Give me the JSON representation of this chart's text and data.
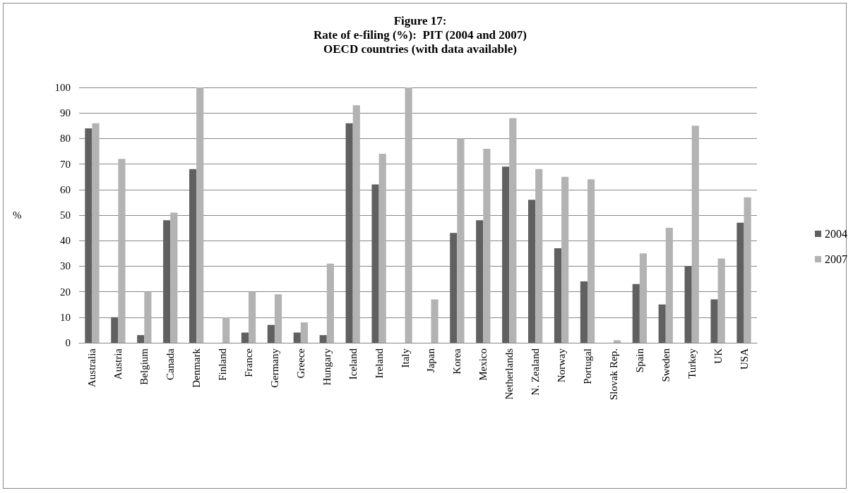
{
  "chart_data": {
    "type": "bar",
    "title": "Figure 17:\nRate of e-filing (%):  PIT (2004 and 2007)\nOECD countries (with data available)",
    "ylabel": "%",
    "categories": [
      "Australia",
      "Austria",
      "Belgium",
      "Canada",
      "Denmark",
      "Finland",
      "France",
      "Germany",
      "Greece",
      "Hungary",
      "Iceland",
      "Ireland",
      "Italy",
      "Japan",
      "Korea",
      "Mexico",
      "Netherlands",
      "N. Zealand",
      "Norway",
      "Portugal",
      "Slovak Rep.",
      "Spain",
      "Sweden",
      "Turkey",
      "UK",
      "USA"
    ],
    "series": [
      {
        "name": "2004",
        "color": "#606060",
        "values": [
          84,
          10,
          3,
          48,
          68,
          null,
          4,
          7,
          4,
          3,
          86,
          62,
          null,
          null,
          43,
          48,
          69,
          56,
          37,
          24,
          null,
          23,
          15,
          30,
          17,
          47
        ]
      },
      {
        "name": "2007",
        "color": "#b3b3b3",
        "values": [
          86,
          72,
          20,
          51,
          100,
          10,
          20,
          19,
          8,
          31,
          93,
          74,
          100,
          17,
          80,
          76,
          88,
          68,
          65,
          64,
          1,
          35,
          45,
          85,
          33,
          57
        ]
      }
    ],
    "ylim": [
      0,
      100
    ],
    "yticks": [
      0,
      10,
      20,
      30,
      40,
      50,
      60,
      70,
      80,
      90,
      100
    ],
    "grid": "y",
    "legend": "right"
  }
}
